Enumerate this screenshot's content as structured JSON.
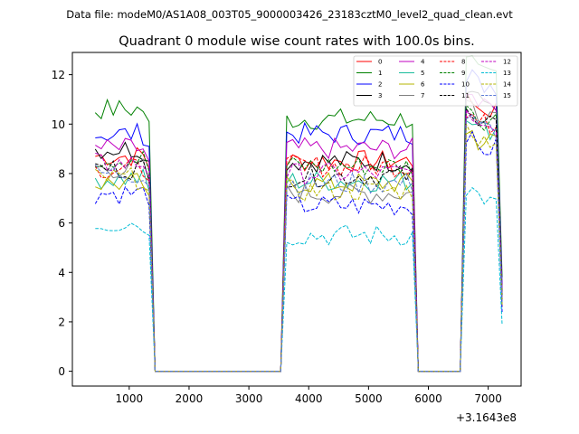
{
  "figure": {
    "suptitle": "Data file: modeM0/AS1A08_003T05_9000003426_23183cztM0_level2_quad_clean.evt"
  },
  "chart_data": {
    "type": "line",
    "title": "Quadrant 0 module wise count rates with 100.0s bins.",
    "xlabel": "",
    "ylabel": "",
    "x_offset_label": "+3.1643e8",
    "xlim": [
      50,
      7550
    ],
    "ylim": [
      -0.6,
      12.9
    ],
    "xticks": [
      1000,
      2000,
      3000,
      4000,
      5000,
      6000,
      7000
    ],
    "xtick_labels": [
      "1000",
      "2000",
      "3000",
      "4000",
      "5000",
      "6000",
      "7000"
    ],
    "yticks": [
      0,
      2,
      4,
      6,
      8,
      10,
      12
    ],
    "ytick_labels": [
      "0",
      "2",
      "4",
      "6",
      "8",
      "10",
      "12"
    ],
    "grid": false,
    "legend": {
      "placement": "top-right",
      "columns": 4
    },
    "segments": [
      {
        "x_start": 433,
        "x_end": 1333
      },
      {
        "x_start": 3633,
        "x_end": 5733
      },
      {
        "x_start": 6633,
        "x_end": 7233
      }
    ],
    "gaps": [
      {
        "x_start": 1433,
        "x_end": 3533
      },
      {
        "x_start": 5833,
        "x_end": 6533
      }
    ],
    "series": [
      {
        "name": "0",
        "color": "#ff0000",
        "dash": "solid",
        "levels": [
          8.7,
          8.5,
          10.6
        ],
        "end_value": 2.6
      },
      {
        "name": "1",
        "color": "#008000",
        "dash": "solid",
        "levels": [
          10.6,
          10.2,
          12.1
        ],
        "end_value": 3.8
      },
      {
        "name": "2",
        "color": "#0000ff",
        "dash": "solid",
        "levels": [
          9.6,
          9.6,
          11.6
        ],
        "end_value": 3.5
      },
      {
        "name": "3",
        "color": "#000000",
        "dash": "solid",
        "levels": [
          9.0,
          8.5,
          10.9
        ],
        "end_value": 3.2
      },
      {
        "name": "4",
        "color": "#c000c0",
        "dash": "solid",
        "levels": [
          9.0,
          9.0,
          11.0
        ],
        "end_value": 3.3
      },
      {
        "name": "5",
        "color": "#1abc9c",
        "dash": "solid",
        "levels": [
          7.8,
          7.7,
          9.8
        ],
        "end_value": 2.9
      },
      {
        "name": "6",
        "color": "#b5b500",
        "dash": "solid",
        "levels": [
          7.6,
          7.6,
          9.3
        ],
        "end_value": 2.8
      },
      {
        "name": "7",
        "color": "#808080",
        "dash": "solid",
        "levels": [
          8.2,
          7.2,
          10.5
        ],
        "end_value": 2.9
      },
      {
        "name": "8",
        "color": "#ff0000",
        "dash": "dashed",
        "levels": [
          8.2,
          8.3,
          10.0
        ],
        "end_value": 2.9
      },
      {
        "name": "9",
        "color": "#008000",
        "dash": "dashed",
        "levels": [
          8.6,
          8.3,
          10.2
        ],
        "end_value": 3.0
      },
      {
        "name": "10",
        "color": "#0000ff",
        "dash": "dashed",
        "levels": [
          7.2,
          6.7,
          9.0
        ],
        "end_value": 2.4
      },
      {
        "name": "11",
        "color": "#000000",
        "dash": "dashed",
        "levels": [
          8.2,
          7.9,
          10.1
        ],
        "end_value": 2.8
      },
      {
        "name": "12",
        "color": "#c000c0",
        "dash": "dashed",
        "levels": [
          8.4,
          8.0,
          10.0
        ],
        "end_value": 2.9
      },
      {
        "name": "13",
        "color": "#00bcd4",
        "dash": "dashed",
        "levels": [
          6.0,
          5.5,
          6.9
        ],
        "end_value": 1.9
      },
      {
        "name": "14",
        "color": "#b5b500",
        "dash": "dashed",
        "levels": [
          7.8,
          7.3,
          9.4
        ],
        "end_value": 2.7
      },
      {
        "name": "15",
        "color": "#5b7bd6",
        "dash": "dashed",
        "levels": [
          8.0,
          7.6,
          9.8
        ],
        "end_value": 2.8
      }
    ]
  }
}
